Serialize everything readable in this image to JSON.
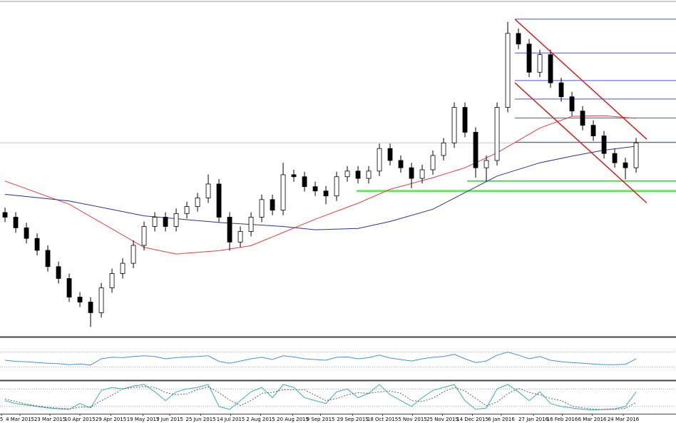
{
  "chart_data": [
    {
      "type": "candlestick",
      "xlim": [
        -0.47,
        62.73
      ],
      "ylim": [
        0,
        100
      ],
      "up_color": "#ffffff",
      "down_color": "#000000",
      "open": [
        37.0,
        35.6,
        32.4,
        29.2,
        25.6,
        20.7,
        17.1,
        11.5,
        10.0,
        6.8,
        14.3,
        18.6,
        21.7,
        27.1,
        32.8,
        35.6,
        32.8,
        36.7,
        38.8,
        41.4,
        45.6,
        35.6,
        28.1,
        31.3,
        35.6,
        40.9,
        37.7,
        48.4,
        47.8,
        44.8,
        43.5,
        42.0,
        47.8,
        49.5,
        47.3,
        49.5,
        56.3,
        52.7,
        50.5,
        47.3,
        49.9,
        54.2,
        58.0,
        68.7,
        61.2,
        50.5,
        52.7,
        68.7,
        91.0,
        87.8,
        79.3,
        84.6,
        76.1,
        71.9,
        67.6,
        63.3,
        60.1,
        54.8,
        52.0,
        50.5
      ],
      "high": [
        38.5,
        37.1,
        33.9,
        30.7,
        27.1,
        22.2,
        18.6,
        13.0,
        11.5,
        15.8,
        20.1,
        23.2,
        28.6,
        34.3,
        37.1,
        37.1,
        38.2,
        40.3,
        42.9,
        48.5,
        47.1,
        37.1,
        32.8,
        37.1,
        42.4,
        42.4,
        52.0,
        49.9,
        49.3,
        46.3,
        45.0,
        49.3,
        51.0,
        51.0,
        51.0,
        57.8,
        57.8,
        54.2,
        52.0,
        51.4,
        55.7,
        59.5,
        70.2,
        70.2,
        62.7,
        54.2,
        70.2,
        94.5,
        92.5,
        89.3,
        86.1,
        86.1,
        77.6,
        73.4,
        69.1,
        64.8,
        61.6,
        56.3,
        53.5,
        59.5
      ],
      "low": [
        34.1,
        30.9,
        27.7,
        24.1,
        19.2,
        15.6,
        10.0,
        8.5,
        2.5,
        5.3,
        12.8,
        17.1,
        20.2,
        25.6,
        31.3,
        31.3,
        31.3,
        35.2,
        37.3,
        39.9,
        34.1,
        25.5,
        26.6,
        29.8,
        34.1,
        36.2,
        36.2,
        46.3,
        43.3,
        42.0,
        39.5,
        40.5,
        46.3,
        45.8,
        45.8,
        48.0,
        51.2,
        49.0,
        44.3,
        45.8,
        48.4,
        52.7,
        56.5,
        59.7,
        47.5,
        46.5,
        51.2,
        67.2,
        86.3,
        77.8,
        77.8,
        74.6,
        70.4,
        66.1,
        61.8,
        58.6,
        53.3,
        50.5,
        47.0,
        49.0
      ],
      "close": [
        35.6,
        32.4,
        29.2,
        25.6,
        20.7,
        17.1,
        11.5,
        10.0,
        6.8,
        14.3,
        18.6,
        21.7,
        27.1,
        32.8,
        35.6,
        32.8,
        36.7,
        38.8,
        41.4,
        45.6,
        35.6,
        28.1,
        31.3,
        35.6,
        40.9,
        37.7,
        48.4,
        47.8,
        44.8,
        43.5,
        42.0,
        47.8,
        49.5,
        47.3,
        49.5,
        56.3,
        52.7,
        50.5,
        47.3,
        49.9,
        54.2,
        58.0,
        68.7,
        61.2,
        50.5,
        52.7,
        68.7,
        91.0,
        87.8,
        79.3,
        84.6,
        76.1,
        71.9,
        67.6,
        63.3,
        60.1,
        54.8,
        52.0,
        50.5,
        58.0
      ],
      "overlays": [
        {
          "color": "#e04040",
          "x": [
            0,
            6,
            13,
            16,
            20,
            23,
            26,
            29,
            33,
            36,
            40,
            43,
            46,
            50,
            53,
            56,
            59
          ],
          "values": [
            46.5,
            39.5,
            26.5,
            24.5,
            25.5,
            27,
            31,
            35,
            39.8,
            44,
            47.5,
            50.5,
            55,
            62.5,
            66,
            66.2,
            65.4
          ]
        },
        {
          "color": "#303090",
          "x": [
            0,
            6,
            13,
            20,
            26,
            29,
            33,
            36,
            40,
            43,
            46,
            50,
            53,
            56,
            59
          ],
          "values": [
            42.5,
            40.5,
            36,
            34,
            32.8,
            31.8,
            32.2,
            34.3,
            38,
            43,
            48,
            52,
            54,
            55.8,
            57
          ]
        }
      ],
      "trendlines": [
        {
          "color": "#d02020",
          "x": [
            47.67,
            60
          ],
          "values": [
            95.3,
            59.1
          ]
        },
        {
          "color": "#d02020",
          "x": [
            47.67,
            60
          ],
          "values": [
            76.1,
            39.9
          ]
        }
      ],
      "hlines": [
        {
          "value": 58.0,
          "color": "#c8c8c8",
          "width": 1
        },
        {
          "value": 95.3,
          "x": 47.67,
          "color": "#5050c0",
          "width": 1
        },
        {
          "value": 85.1,
          "x": 47.67,
          "color": "#5050c0",
          "width": 1
        },
        {
          "value": 76.8,
          "x": 47.67,
          "color": "#5050c0",
          "width": 1
        },
        {
          "value": 71.2,
          "x": 47.67,
          "color": "#5050c0",
          "width": 1
        },
        {
          "value": 65.5,
          "x": 47.67,
          "color": "#5050c0",
          "width": 1
        },
        {
          "value": 58.2,
          "x": 47.67,
          "color": "#5050c0",
          "width": 1
        },
        {
          "value": 46.5,
          "x": 43.2,
          "color": "#60d060",
          "width": 2
        },
        {
          "value": 43.5,
          "x": 32.87,
          "color": "#70e070",
          "width": 3
        }
      ]
    },
    {
      "type": "line",
      "xlim": [
        -0.47,
        62.73
      ],
      "ylim": [
        0,
        100
      ],
      "levels": [
        70,
        30
      ],
      "series": [
        {
          "color": "#4a90d0",
          "values": [
            48,
            45,
            44,
            42,
            40,
            39,
            36,
            38,
            35,
            52,
            56,
            55,
            58,
            60,
            58,
            52,
            55,
            57,
            58,
            60,
            45,
            40,
            46,
            52,
            56,
            50,
            60,
            57,
            52,
            50,
            48,
            56,
            57,
            52,
            55,
            62,
            54,
            50,
            46,
            52,
            56,
            58,
            64,
            52,
            42,
            46,
            62,
            70,
            62,
            52,
            58,
            48,
            44,
            42,
            40,
            38,
            36,
            36,
            37,
            52
          ]
        }
      ]
    },
    {
      "type": "line",
      "xlim": [
        -0.47,
        62.73
      ],
      "ylim": [
        0,
        100
      ],
      "levels": [
        80,
        20
      ],
      "series": [
        {
          "color": "#40b0a0",
          "values": [
            40,
            30,
            25,
            20,
            15,
            12,
            10,
            30,
            15,
            75,
            85,
            80,
            90,
            95,
            70,
            40,
            70,
            80,
            85,
            95,
            20,
            10,
            40,
            70,
            85,
            50,
            95,
            85,
            50,
            40,
            30,
            70,
            80,
            50,
            65,
            95,
            60,
            40,
            20,
            50,
            75,
            85,
            95,
            40,
            10,
            15,
            80,
            95,
            70,
            40,
            70,
            30,
            20,
            15,
            10,
            8,
            10,
            12,
            20,
            70
          ]
        },
        {
          "color": "#606060",
          "dash": true,
          "values": [
            45,
            37,
            28,
            22,
            17,
            14,
            12,
            17,
            18,
            40,
            58,
            80,
            85,
            88,
            85,
            68,
            60,
            63,
            78,
            87,
            67,
            42,
            23,
            40,
            65,
            68,
            77,
            77,
            77,
            58,
            40,
            47,
            60,
            67,
            65,
            70,
            73,
            65,
            40,
            37,
            48,
            70,
            85,
            73,
            48,
            22,
            35,
            63,
            82,
            68,
            60,
            47,
            40,
            22,
            15,
            11,
            9,
            10,
            14,
            34
          ]
        }
      ],
      "xticks": [
        {
          "value": -0.33,
          "label": "5"
        },
        {
          "value": 1.4,
          "label": "4 Mar 2015"
        },
        {
          "value": 4.2,
          "label": "23 Mar 2015"
        },
        {
          "value": 7.0,
          "label": "10 Apr 2015"
        },
        {
          "value": 9.9,
          "label": "29 Apr 2015"
        },
        {
          "value": 12.9,
          "label": "19 May 2015"
        },
        {
          "value": 15.4,
          "label": "7 Jun 2015"
        },
        {
          "value": 18.3,
          "label": "25 Jun 2015"
        },
        {
          "value": 21.1,
          "label": "14 Jul 2015"
        },
        {
          "value": 23.9,
          "label": "2 Aug 2015"
        },
        {
          "value": 26.9,
          "label": "20 Aug 2015"
        },
        {
          "value": 29.5,
          "label": "9 Sep 2015"
        },
        {
          "value": 32.5,
          "label": "29 Sep 2015"
        },
        {
          "value": 35.3,
          "label": "18 Oct 2015"
        },
        {
          "value": 38.1,
          "label": "5 Nov 2015"
        },
        {
          "value": 40.9,
          "label": "25 Nov 2015"
        },
        {
          "value": 43.7,
          "label": "14 Dec 2015"
        },
        {
          "value": 46.4,
          "label": "6 Jan 2016"
        },
        {
          "value": 49.4,
          "label": "27 Jan 2016"
        },
        {
          "value": 52.1,
          "label": "16 Feb 2016"
        },
        {
          "value": 54.9,
          "label": "6 Mar 2016"
        },
        {
          "value": 57.8,
          "label": "24 Mar 2016"
        }
      ]
    }
  ]
}
